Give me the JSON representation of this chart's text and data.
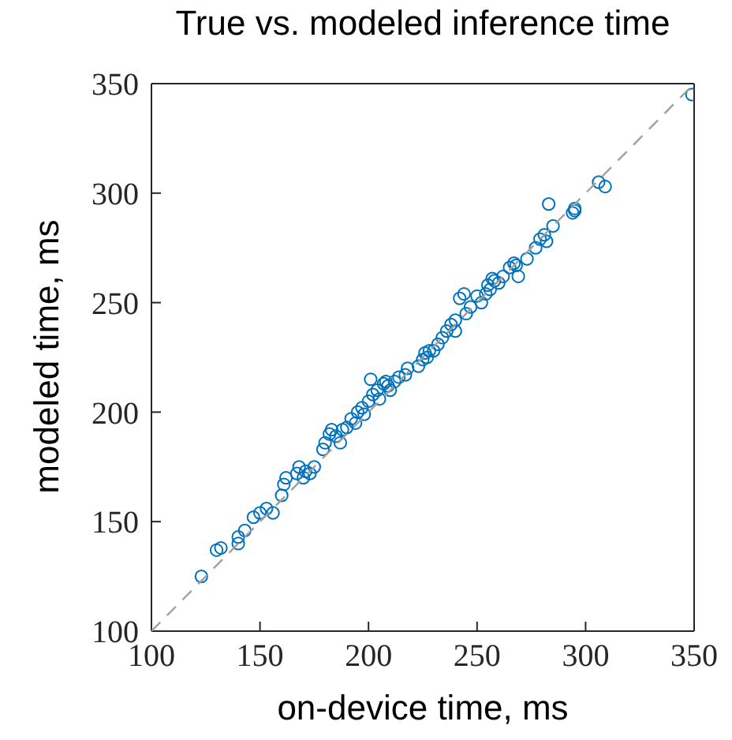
{
  "chart_data": {
    "type": "scatter",
    "title": "True vs. modeled inference time",
    "xlabel": "on-device time, ms",
    "ylabel": "modeled time, ms",
    "xlim": [
      100,
      350
    ],
    "ylim": [
      100,
      350
    ],
    "xticks": [
      100,
      150,
      200,
      250,
      300,
      350
    ],
    "yticks": [
      100,
      150,
      200,
      250,
      300,
      350
    ],
    "grid": false,
    "legend": false,
    "marker": "circle",
    "series": [
      {
        "color": "#0072bd",
        "x": [
          123,
          130,
          132,
          140,
          140,
          143,
          147,
          150,
          153,
          156,
          160,
          161,
          162,
          167,
          168,
          170,
          171,
          173,
          175,
          179,
          180,
          182,
          183,
          185,
          187,
          188,
          190,
          192,
          194,
          195,
          197,
          198,
          200,
          201,
          202,
          204,
          205,
          207,
          208,
          209,
          210,
          212,
          214,
          217,
          218,
          223,
          225,
          226,
          227,
          228,
          230,
          232,
          234,
          236,
          238,
          240,
          240,
          242,
          244,
          245,
          247,
          250,
          252,
          254,
          255,
          256,
          257,
          258,
          260,
          262,
          265,
          267,
          268,
          269,
          273,
          277,
          279,
          281,
          282,
          283,
          285,
          294,
          295,
          295,
          306,
          309,
          349
        ],
        "values": [
          125,
          137,
          138,
          140,
          143,
          146,
          152,
          154,
          156,
          154,
          162,
          167,
          170,
          172,
          175,
          170,
          173,
          172,
          175,
          183,
          186,
          190,
          192,
          189,
          186,
          192,
          193,
          197,
          195,
          200,
          202,
          199,
          205,
          215,
          208,
          210,
          206,
          213,
          214,
          212,
          210,
          214,
          216,
          217,
          220,
          221,
          224,
          227,
          225,
          228,
          228,
          231,
          234,
          237,
          240,
          242,
          237,
          252,
          254,
          245,
          248,
          253,
          250,
          254,
          258,
          256,
          261,
          260,
          259,
          262,
          266,
          268,
          267,
          262,
          270,
          275,
          279,
          281,
          278,
          295,
          285,
          291,
          292,
          293,
          305,
          303,
          345
        ]
      },
      {
        "type": "line",
        "color": "#a0a0a0",
        "line_style": "dashed",
        "marker": "none",
        "x": [
          100,
          350
        ],
        "values": [
          100,
          350
        ]
      }
    ]
  }
}
